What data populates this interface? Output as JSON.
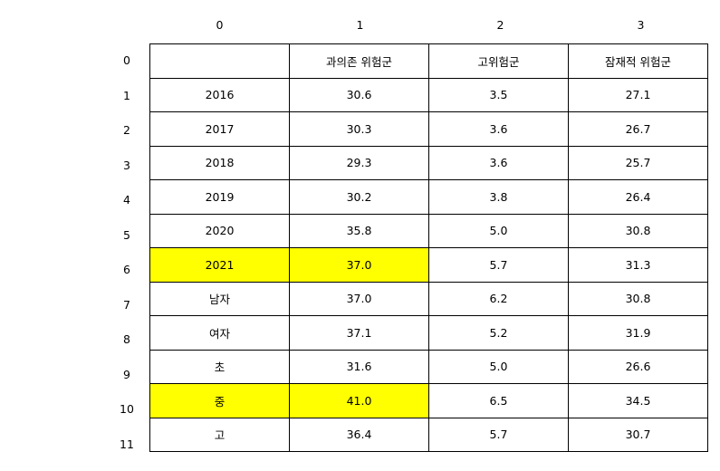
{
  "chart_data": {
    "type": "table",
    "highlight_color": "#ffff00",
    "column_headers": [
      "0",
      "1",
      "2",
      "3"
    ],
    "row_headers": [
      "0",
      "1",
      "2",
      "3",
      "4",
      "5",
      "6",
      "7",
      "8",
      "9",
      "10",
      "11"
    ],
    "rows": [
      [
        "",
        "과의존 위험군",
        "고위험군",
        "잠재적 위험군"
      ],
      [
        "2016",
        "30.6",
        "3.5",
        "27.1"
      ],
      [
        "2017",
        "30.3",
        "3.6",
        "26.7"
      ],
      [
        "2018",
        "29.3",
        "3.6",
        "25.7"
      ],
      [
        "2019",
        "30.2",
        "3.8",
        "26.4"
      ],
      [
        "2020",
        "35.8",
        "5.0",
        "30.8"
      ],
      [
        "2021",
        "37.0",
        "5.7",
        "31.3"
      ],
      [
        "남자",
        "37.0",
        "6.2",
        "30.8"
      ],
      [
        "여자",
        "37.1",
        "5.2",
        "31.9"
      ],
      [
        "초",
        "31.6",
        "5.0",
        "26.6"
      ],
      [
        "중",
        "41.0",
        "6.5",
        "34.5"
      ],
      [
        "고",
        "36.4",
        "5.7",
        "30.7"
      ]
    ],
    "highlighted_cells": [
      [
        6,
        0
      ],
      [
        6,
        1
      ],
      [
        10,
        0
      ],
      [
        10,
        1
      ]
    ]
  }
}
